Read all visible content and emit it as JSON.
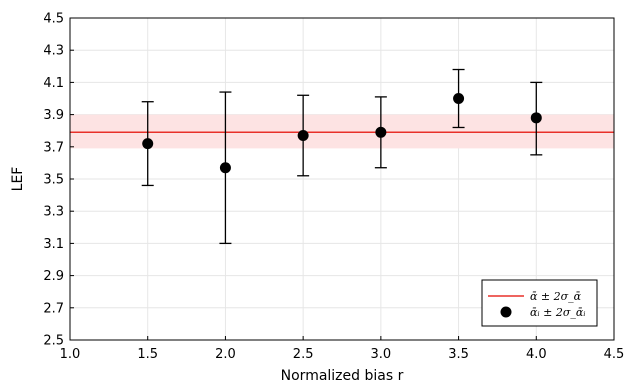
{
  "chart_data": {
    "type": "scatter",
    "xlabel": "Normalized bias r",
    "ylabel": "LEF",
    "xlim": [
      1.0,
      4.5
    ],
    "ylim": [
      2.5,
      4.5
    ],
    "xticks": [
      "1.0",
      "1.5",
      "2.0",
      "2.5",
      "3.0",
      "3.5",
      "4.0",
      "4.5"
    ],
    "yticks": [
      "2.5",
      "2.7",
      "2.9",
      "3.1",
      "3.3",
      "3.5",
      "3.7",
      "3.9",
      "4.1",
      "4.3",
      "4.5"
    ],
    "grid": true,
    "legend_position": "bottom-right",
    "mean_line": {
      "value": 3.79,
      "band": [
        3.69,
        3.9
      ],
      "color": "#e8302a",
      "band_color": "#fde3e3"
    },
    "series": [
      {
        "name": "ᾱᵢ ± 2σ_ᾱᵢ",
        "x": [
          1.5,
          2.0,
          2.5,
          3.0,
          3.5,
          4.0
        ],
        "y": [
          3.72,
          3.57,
          3.77,
          3.79,
          4.0,
          3.88
        ],
        "err_low": [
          3.46,
          3.1,
          3.52,
          3.57,
          3.82,
          3.65
        ],
        "err_high": [
          3.98,
          4.04,
          4.02,
          4.01,
          4.18,
          4.1
        ],
        "color": "#000000"
      }
    ],
    "legend": [
      {
        "label": "ᾱ ± 2σ_ᾱ",
        "marker": "line",
        "color": "#e8302a"
      },
      {
        "label": "ᾱᵢ ± 2σ_ᾱᵢ",
        "marker": "circle",
        "color": "#000000"
      }
    ]
  }
}
